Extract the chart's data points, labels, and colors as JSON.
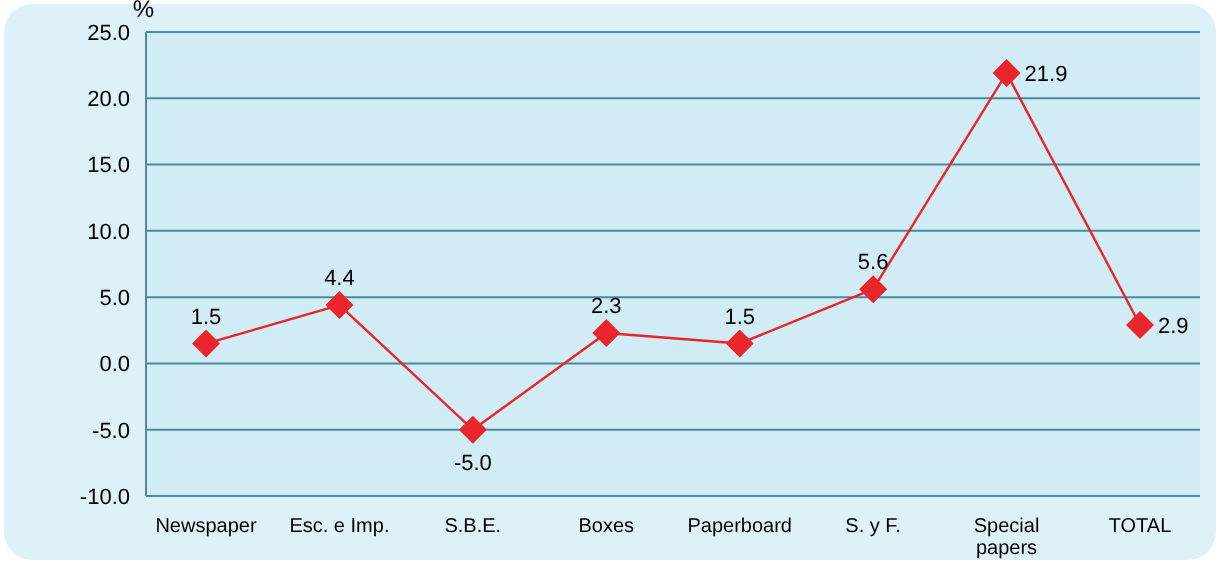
{
  "chart_data": {
    "type": "line",
    "ylabel": "%",
    "categories": [
      "Newspaper",
      "Esc. e Imp.",
      "S.B.E.",
      "Boxes",
      "Paperboard",
      "S. y F.",
      "Special papers",
      "TOTAL"
    ],
    "series": [
      {
        "color": "#e8262c",
        "values": [
          1.5,
          4.4,
          -5.0,
          2.3,
          1.5,
          5.6,
          21.9,
          2.9
        ],
        "value_labels": [
          "1.5",
          "4.4",
          "-5.0",
          "2.3",
          "1.5",
          "5.6",
          "21.9",
          "2.9"
        ]
      }
    ],
    "ylim": [
      -10,
      25
    ],
    "yticks": [
      {
        "value": -10,
        "label": "-10.0"
      },
      {
        "value": -5,
        "label": "-5.0"
      },
      {
        "value": 0,
        "label": "0.0"
      },
      {
        "value": 5,
        "label": "5.0"
      },
      {
        "value": 10,
        "label": "10.0"
      },
      {
        "value": 15,
        "label": "15.0"
      },
      {
        "value": 20,
        "label": "20.0"
      },
      {
        "value": 25,
        "label": "25.0"
      }
    ],
    "grid": "y",
    "marker": "diamond",
    "line_style": "solid"
  }
}
